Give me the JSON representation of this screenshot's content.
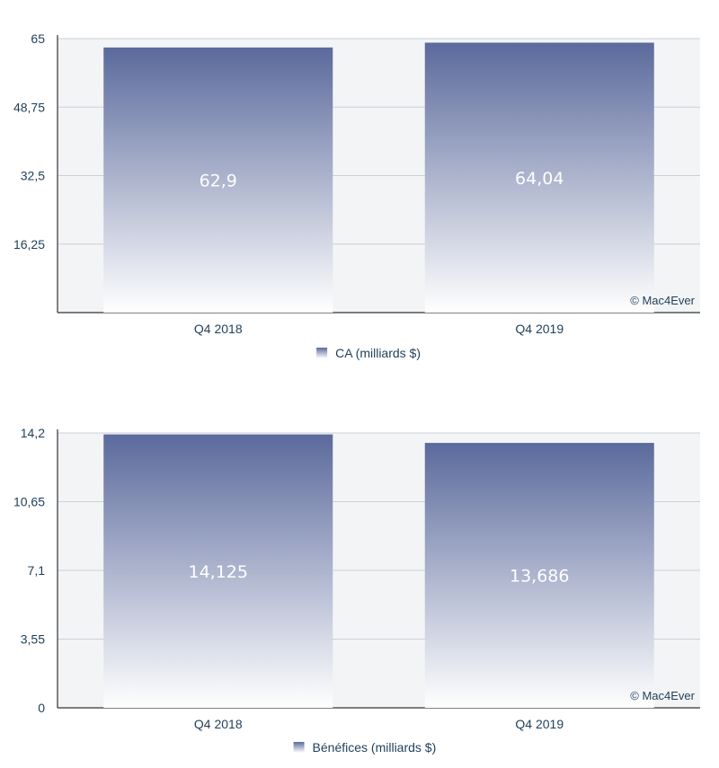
{
  "colors": {
    "bar_top": "#5b6a9c",
    "bar_bottom": "#ffffff",
    "text": "#1e3f5a",
    "grid": "#c9d0db",
    "axis": "#333333"
  },
  "chart_data": [
    {
      "type": "bar",
      "categories": [
        "Q4 2018",
        "Q4 2019"
      ],
      "series": [
        {
          "name": "CA (milliards $)",
          "values": [
            62.9,
            64.04
          ]
        }
      ],
      "value_labels": [
        "62,9",
        "64,04"
      ],
      "yticks": [
        0,
        16.25,
        32.5,
        48.75,
        65
      ],
      "ytick_labels": [
        "",
        "16,25",
        "32,5",
        "48,75",
        "65"
      ],
      "ylim": [
        0,
        65
      ],
      "grid": true,
      "legend": "bottom",
      "credit": "© Mac4Ever"
    },
    {
      "type": "bar",
      "categories": [
        "Q4 2018",
        "Q4 2019"
      ],
      "series": [
        {
          "name": "Bénéfices (milliards $)",
          "values": [
            14.125,
            13.686
          ]
        }
      ],
      "value_labels": [
        "14,125",
        "13,686"
      ],
      "yticks": [
        0,
        3.55,
        7.1,
        10.65,
        14.2
      ],
      "ytick_labels": [
        "0",
        "3,55",
        "7,1",
        "10,65",
        "14,2"
      ],
      "ylim": [
        0,
        14.2
      ],
      "grid": true,
      "legend": "bottom",
      "credit": "© Mac4Ever"
    }
  ]
}
